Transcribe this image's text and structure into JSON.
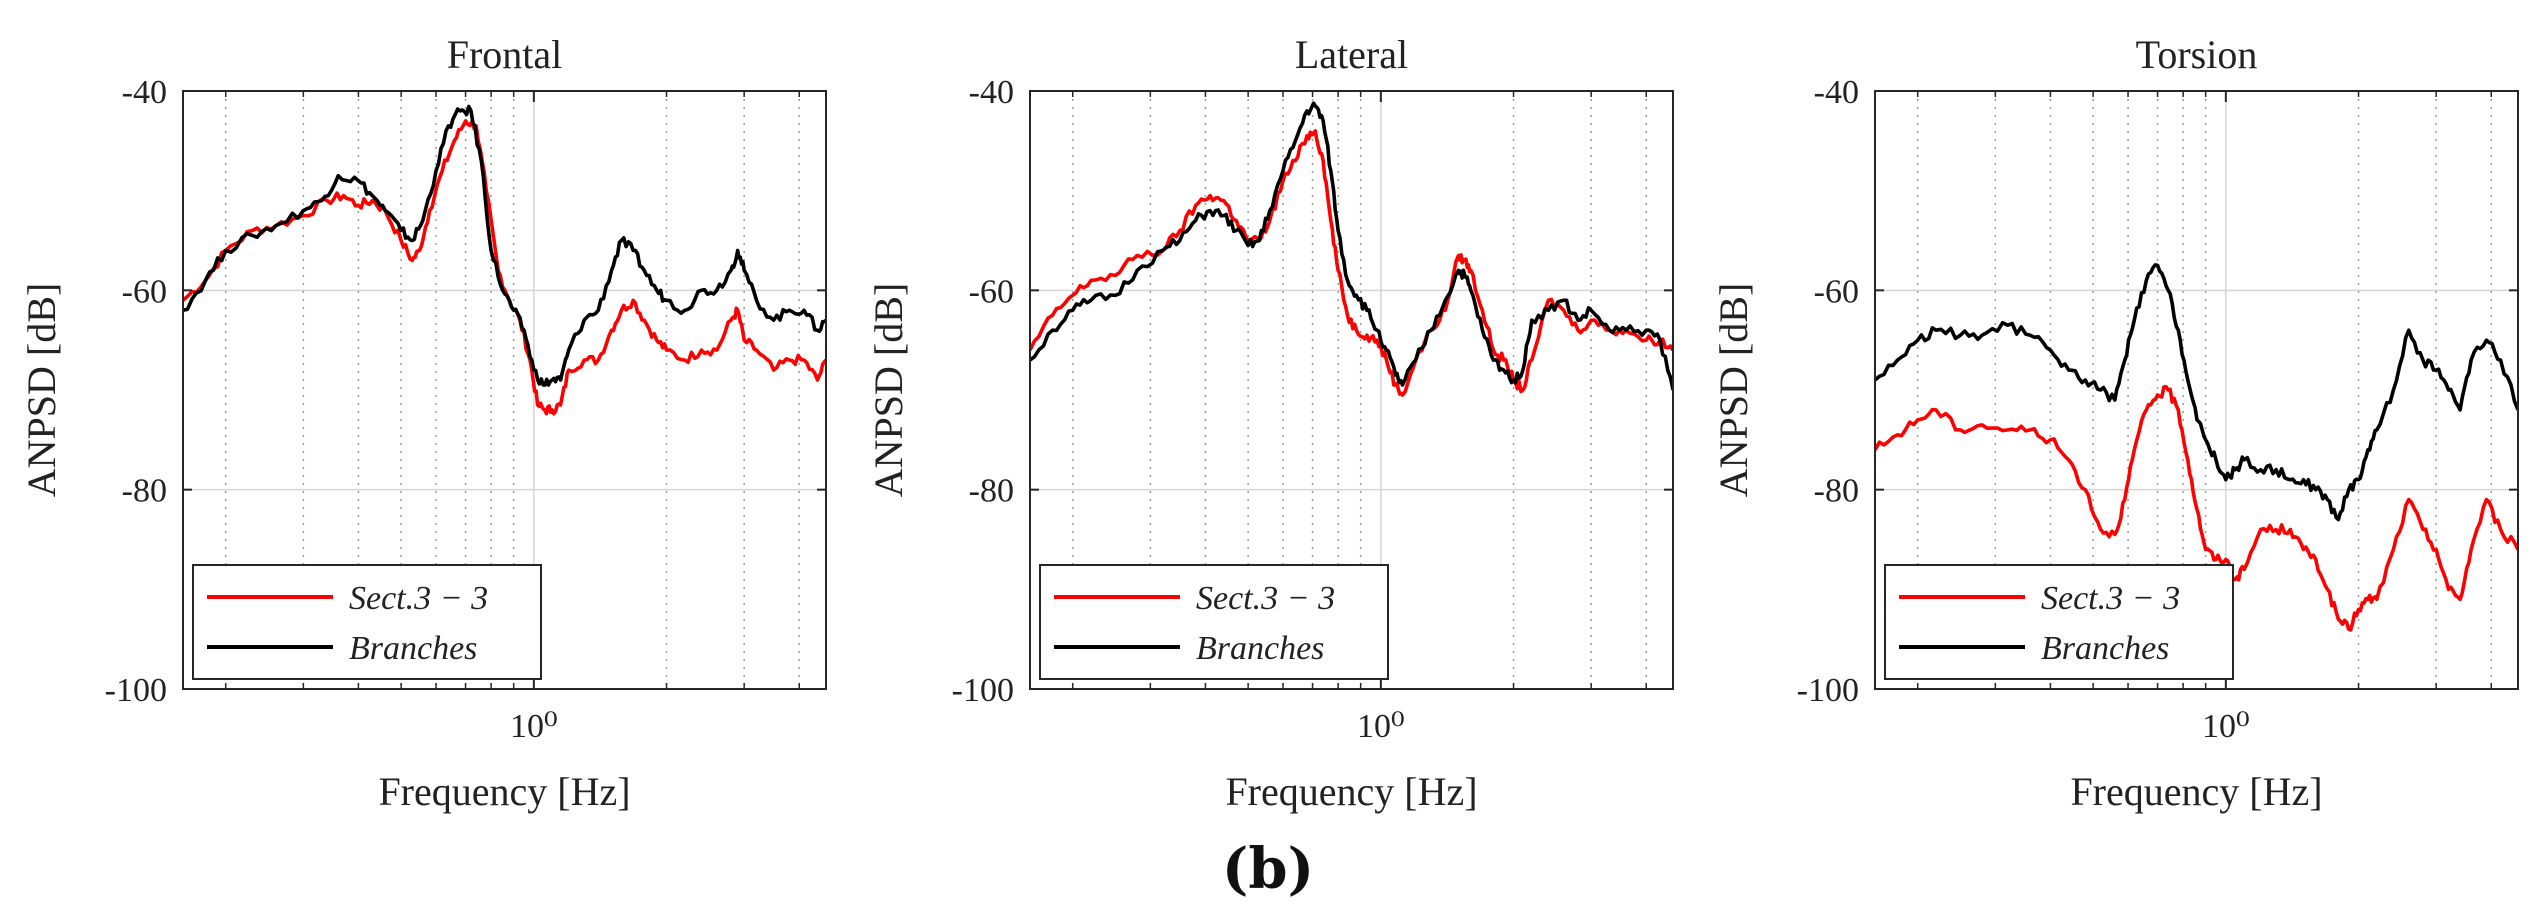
{
  "caption": "(b)",
  "chart_data": [
    {
      "type": "line",
      "title": "Frontal",
      "xlabel": "Frequency [Hz]",
      "ylabel": "ANPSD [dB]",
      "xscale": "log",
      "xlim": [
        0.16,
        4.6
      ],
      "ylim": [
        -100,
        -40
      ],
      "yticks": [
        -40,
        -60,
        -80,
        -100
      ],
      "ytick_labels": [
        "-40",
        "-60",
        "-80",
        "-100"
      ],
      "xtick_label": "10⁰",
      "grid": true,
      "legend_position": "lower-left",
      "series": [
        {
          "name": "Sect.3 − 3",
          "color": "#ff0000",
          "x": [
            0.16,
            0.18,
            0.2,
            0.23,
            0.26,
            0.3,
            0.34,
            0.37,
            0.4,
            0.43,
            0.46,
            0.5,
            0.53,
            0.55,
            0.58,
            0.62,
            0.66,
            0.7,
            0.74,
            0.78,
            0.83,
            0.88,
            0.93,
            0.98,
            1.02,
            1.06,
            1.1,
            1.15,
            1.2,
            1.3,
            1.4,
            1.5,
            1.58,
            1.68,
            1.78,
            1.9,
            2.0,
            2.2,
            2.4,
            2.6,
            2.8,
            2.9,
            3.0,
            3.2,
            3.5,
            3.8,
            4.1,
            4.4,
            4.6
          ],
          "y": [
            -61,
            -59,
            -56,
            -54,
            -53.5,
            -52.5,
            -51,
            -50.5,
            -51.5,
            -51,
            -52,
            -55,
            -57,
            -56,
            -52,
            -48,
            -45,
            -43,
            -43.5,
            -50,
            -58,
            -61,
            -63,
            -67,
            -71.5,
            -72,
            -72,
            -71.5,
            -68,
            -67,
            -67,
            -64,
            -62,
            -61,
            -63,
            -65,
            -66,
            -67,
            -66,
            -66,
            -63,
            -62,
            -65,
            -66,
            -68,
            -67,
            -67,
            -69,
            -67
          ]
        },
        {
          "name": "Branches",
          "color": "#000000",
          "x": [
            0.16,
            0.18,
            0.2,
            0.23,
            0.26,
            0.3,
            0.33,
            0.36,
            0.4,
            0.43,
            0.46,
            0.5,
            0.53,
            0.56,
            0.6,
            0.64,
            0.68,
            0.72,
            0.76,
            0.8,
            0.85,
            0.9,
            0.95,
            1.0,
            1.05,
            1.1,
            1.15,
            1.2,
            1.3,
            1.4,
            1.5,
            1.58,
            1.68,
            1.78,
            1.9,
            2.0,
            2.2,
            2.4,
            2.6,
            2.8,
            2.9,
            3.0,
            3.2,
            3.5,
            3.8,
            4.1,
            4.4,
            4.6
          ],
          "y": [
            -62,
            -59,
            -56,
            -54.5,
            -53.5,
            -52,
            -51,
            -48.5,
            -49,
            -50.5,
            -52,
            -54,
            -55,
            -53,
            -48,
            -43.5,
            -42,
            -42,
            -47,
            -56,
            -60,
            -62,
            -64,
            -68,
            -69.5,
            -69,
            -69,
            -66,
            -63,
            -62,
            -58,
            -55,
            -56,
            -58,
            -60,
            -61,
            -62,
            -60,
            -60,
            -58,
            -56,
            -58,
            -61,
            -63,
            -62,
            -62,
            -64,
            -63
          ]
        }
      ]
    },
    {
      "type": "line",
      "title": "Lateral",
      "xlabel": "Frequency [Hz]",
      "ylabel": "ANPSD [dB]",
      "xscale": "log",
      "xlim": [
        0.16,
        4.6
      ],
      "ylim": [
        -100,
        -40
      ],
      "yticks": [
        -40,
        -60,
        -80,
        -100
      ],
      "ytick_labels": [
        "-40",
        "-60",
        "-80",
        "-100"
      ],
      "xtick_label": "10⁰",
      "grid": true,
      "legend_position": "lower-left",
      "series": [
        {
          "name": "Sect.3 − 3",
          "color": "#ff0000",
          "x": [
            0.16,
            0.18,
            0.2,
            0.22,
            0.25,
            0.28,
            0.32,
            0.35,
            0.38,
            0.41,
            0.44,
            0.47,
            0.5,
            0.53,
            0.56,
            0.6,
            0.64,
            0.68,
            0.71,
            0.74,
            0.77,
            0.8,
            0.84,
            0.88,
            0.93,
            0.98,
            1.03,
            1.08,
            1.12,
            1.2,
            1.3,
            1.4,
            1.5,
            1.55,
            1.6,
            1.7,
            1.8,
            1.9,
            2.0,
            2.1,
            2.2,
            2.4,
            2.6,
            2.8,
            3.0,
            3.3,
            3.6,
            4.0,
            4.3,
            4.6
          ],
          "y": [
            -66,
            -62.5,
            -60.5,
            -59,
            -58.5,
            -56.5,
            -56,
            -54,
            -51.5,
            -50.5,
            -51,
            -53,
            -55,
            -55,
            -53,
            -49,
            -47,
            -44.5,
            -44,
            -47,
            -53,
            -58,
            -62.5,
            -64,
            -64.5,
            -65,
            -67,
            -69.5,
            -70.5,
            -67,
            -64,
            -62,
            -56.5,
            -57,
            -58,
            -62,
            -66,
            -67,
            -69,
            -70,
            -67,
            -61,
            -62,
            -64,
            -63,
            -64,
            -64,
            -65,
            -65,
            -66
          ]
        },
        {
          "name": "Branches",
          "color": "#000000",
          "x": [
            0.16,
            0.18,
            0.2,
            0.22,
            0.25,
            0.28,
            0.32,
            0.35,
            0.38,
            0.41,
            0.44,
            0.47,
            0.5,
            0.53,
            0.56,
            0.6,
            0.64,
            0.68,
            0.71,
            0.74,
            0.77,
            0.8,
            0.84,
            0.88,
            0.93,
            0.98,
            1.03,
            1.08,
            1.12,
            1.2,
            1.3,
            1.4,
            1.5,
            1.55,
            1.6,
            1.7,
            1.8,
            1.9,
            2.0,
            2.1,
            2.2,
            2.4,
            2.6,
            2.8,
            3.0,
            3.3,
            3.6,
            4.0,
            4.3,
            4.6
          ],
          "y": [
            -67,
            -64,
            -62,
            -61,
            -60.5,
            -58,
            -56,
            -55,
            -53,
            -52,
            -52.5,
            -54,
            -55.5,
            -55,
            -52,
            -48,
            -45,
            -42,
            -41.5,
            -43,
            -48,
            -54,
            -59,
            -60.5,
            -62,
            -64,
            -66,
            -68.5,
            -69.5,
            -67,
            -64,
            -61,
            -58,
            -58.5,
            -60,
            -64,
            -67,
            -68,
            -69,
            -68,
            -63,
            -62,
            -61,
            -63,
            -62,
            -64,
            -64,
            -64,
            -65,
            -70
          ]
        }
      ]
    },
    {
      "type": "line",
      "title": "Torsion",
      "xlabel": "Frequency [Hz]",
      "ylabel": "ANPSD [dB]",
      "xscale": "log",
      "xlim": [
        0.16,
        4.6
      ],
      "ylim": [
        -100,
        -40
      ],
      "yticks": [
        -40,
        -60,
        -80,
        -100
      ],
      "ytick_labels": [
        "-40",
        "-60",
        "-80",
        "-100"
      ],
      "xtick_label": "10⁰",
      "grid": true,
      "legend_position": "lower-left",
      "series": [
        {
          "name": "Sect.3 − 3",
          "color": "#ff0000",
          "x": [
            0.16,
            0.18,
            0.2,
            0.22,
            0.25,
            0.28,
            0.32,
            0.36,
            0.4,
            0.44,
            0.48,
            0.52,
            0.56,
            0.59,
            0.62,
            0.66,
            0.7,
            0.74,
            0.78,
            0.82,
            0.86,
            0.9,
            0.95,
            1.0,
            1.05,
            1.1,
            1.2,
            1.3,
            1.4,
            1.5,
            1.6,
            1.7,
            1.8,
            1.9,
            2.0,
            2.1,
            2.2,
            2.4,
            2.6,
            2.8,
            3.0,
            3.2,
            3.4,
            3.6,
            3.9,
            4.2,
            4.6
          ],
          "y": [
            -76,
            -74.5,
            -73,
            -72,
            -74,
            -73.5,
            -74,
            -74,
            -75,
            -77,
            -80,
            -84,
            -84.5,
            -81,
            -76,
            -72,
            -70.5,
            -70,
            -72,
            -77,
            -82,
            -86,
            -87,
            -87,
            -89,
            -88,
            -84,
            -84,
            -84,
            -86,
            -87,
            -90,
            -93,
            -94,
            -92,
            -91,
            -91,
            -86,
            -81,
            -84,
            -86,
            -90,
            -91,
            -86,
            -81,
            -84,
            -86
          ]
        },
        {
          "name": "Branches",
          "color": "#000000",
          "x": [
            0.16,
            0.18,
            0.2,
            0.22,
            0.25,
            0.28,
            0.32,
            0.36,
            0.4,
            0.44,
            0.48,
            0.52,
            0.56,
            0.59,
            0.62,
            0.66,
            0.7,
            0.74,
            0.78,
            0.82,
            0.86,
            0.9,
            0.95,
            1.0,
            1.05,
            1.1,
            1.2,
            1.3,
            1.4,
            1.5,
            1.6,
            1.7,
            1.8,
            1.9,
            2.0,
            2.1,
            2.2,
            2.4,
            2.6,
            2.8,
            3.0,
            3.2,
            3.4,
            3.6,
            3.9,
            4.2,
            4.6
          ],
          "y": [
            -69,
            -67,
            -65,
            -64,
            -64.5,
            -64.5,
            -63.5,
            -64.5,
            -66,
            -68,
            -69,
            -70,
            -71,
            -67,
            -63,
            -59,
            -57.5,
            -60,
            -64,
            -69,
            -73,
            -75,
            -77,
            -79,
            -78,
            -77,
            -78,
            -78,
            -79,
            -79,
            -80,
            -81,
            -83,
            -80,
            -79,
            -76,
            -74,
            -70,
            -64,
            -67,
            -68,
            -70,
            -72,
            -67,
            -65,
            -67,
            -72
          ]
        }
      ]
    }
  ]
}
